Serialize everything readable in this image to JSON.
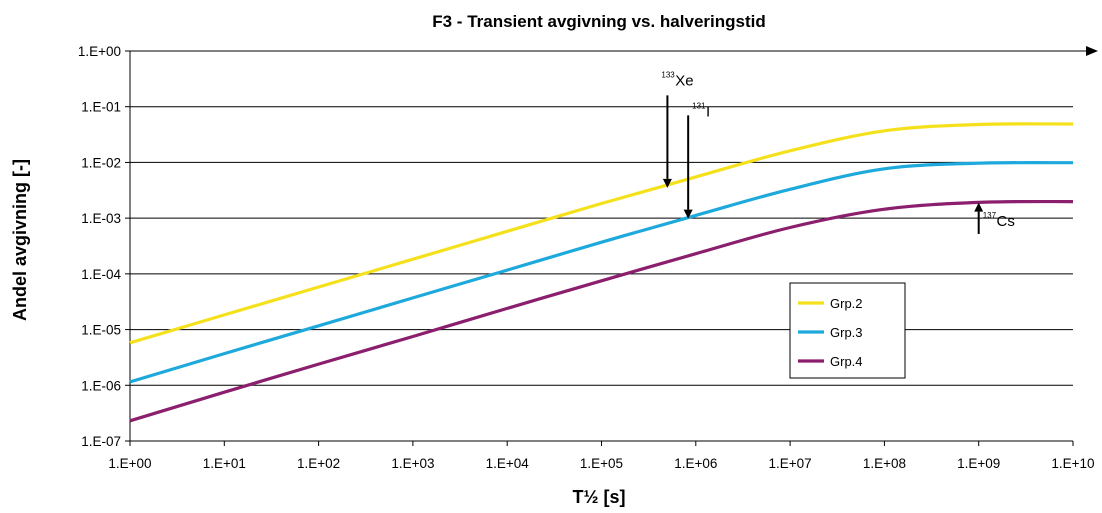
{
  "chart_data": {
    "type": "line",
    "title": "F3 - Transient avgivning vs. halveringstid",
    "xlabel": "T½ [s]",
    "ylabel": "Andel avgivning [-]",
    "x_scale": "log",
    "y_scale": "log",
    "xlim": [
      1,
      10000000000
    ],
    "ylim": [
      1e-07,
      1
    ],
    "x_ticks": [
      "1.E+00",
      "1.E+01",
      "1.E+02",
      "1.E+03",
      "1.E+04",
      "1.E+05",
      "1.E+06",
      "1.E+07",
      "1.E+08",
      "1.E+09",
      "1.E+10"
    ],
    "y_ticks": [
      "1.E+00",
      "1.E-01",
      "1.E-02",
      "1.E-03",
      "1.E-04",
      "1.E-05",
      "1.E-06",
      "1.E-07"
    ],
    "grid": "horizontal",
    "legend_position": "lower-right",
    "x": [
      1,
      10,
      100,
      1000,
      10000,
      100000,
      1000000,
      10000000,
      100000000,
      1000000000,
      10000000000
    ],
    "series": [
      {
        "name": "Grp.2",
        "color": "#f5e11b",
        "values": [
          5.8e-06,
          1.83e-05,
          5.8e-05,
          0.000183,
          0.00058,
          0.00183,
          0.0055,
          0.0162,
          0.037,
          0.048,
          0.049
        ]
      },
      {
        "name": "Grp.3",
        "color": "#1ea9dc",
        "values": [
          1.15e-06,
          3.7e-06,
          1.17e-05,
          3.7e-05,
          0.000117,
          0.00037,
          0.00112,
          0.0033,
          0.0077,
          0.0097,
          0.0099
        ]
      },
      {
        "name": "Grp.4",
        "color": "#8b1f6e",
        "values": [
          2.3e-07,
          7.5e-07,
          2.4e-06,
          7.5e-06,
          2.4e-05,
          7.5e-05,
          0.00023,
          0.00068,
          0.00145,
          0.00192,
          0.00198
        ]
      }
    ],
    "annotations": [
      {
        "sup": "133",
        "label": "Xe",
        "x": 500000,
        "y_from": 0.16,
        "y_to": 0.0035
      },
      {
        "sup": "131",
        "label": "I",
        "x": 830000,
        "y_from": 0.07,
        "y_to": 0.00098
      },
      {
        "sup": "137",
        "label": "Cs",
        "x": 1000000000,
        "y_from": 0.00052,
        "y_to": 0.0019
      }
    ]
  }
}
